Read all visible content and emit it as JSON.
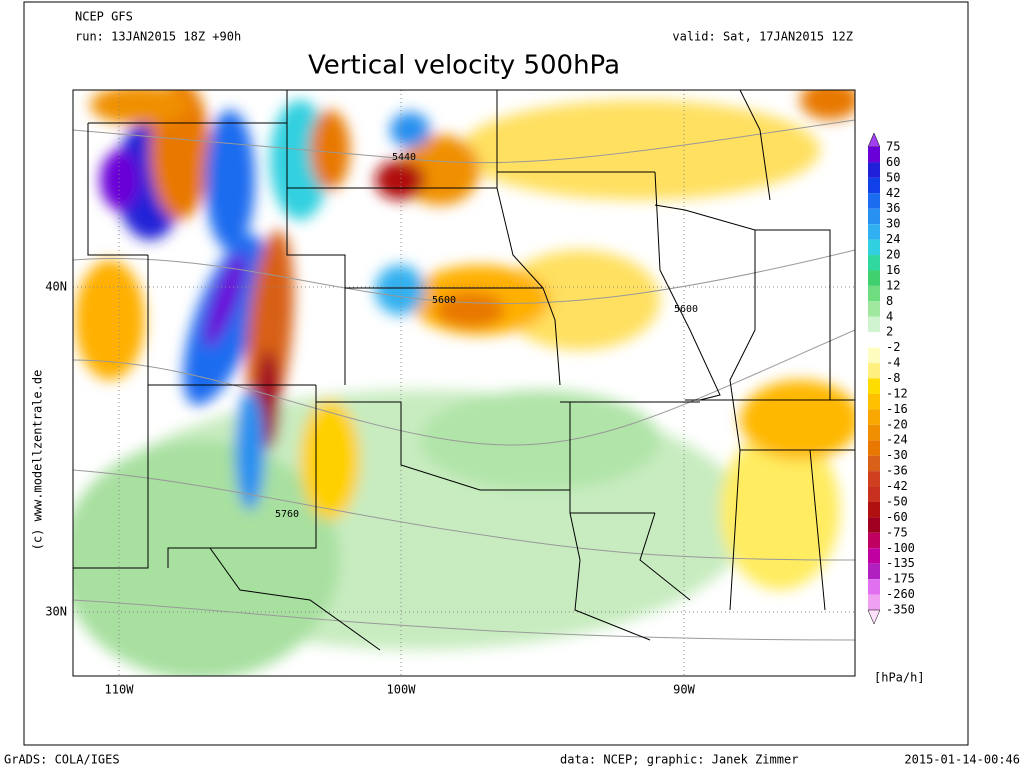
{
  "header": {
    "model": "NCEP GFS",
    "run": "run: 13JAN2015 18Z +90h",
    "valid": "valid: Sat, 17JAN2015 12Z",
    "title": "Vertical velocity 500hPa"
  },
  "side_credit": "(c) www.modellzentrale.de",
  "latitude_labels": [
    "40N",
    "30N"
  ],
  "longitude_labels": [
    "110W",
    "100W",
    "90W"
  ],
  "contour_labels": [
    "5440",
    "5600",
    "5600",
    "5760"
  ],
  "legend": {
    "units": "[hPa/h]",
    "levels": [
      75,
      60,
      50,
      42,
      36,
      30,
      24,
      20,
      16,
      12,
      8,
      4,
      2,
      -2,
      -4,
      -8,
      -12,
      -16,
      -20,
      -24,
      -30,
      -36,
      -42,
      -50,
      -60,
      -75,
      -100,
      -135,
      -175,
      -260,
      -350
    ],
    "colors": [
      "#a040f0",
      "#6a00d8",
      "#2020d8",
      "#1040e8",
      "#1c6cf0",
      "#2890f0",
      "#30b0f0",
      "#30d0e0",
      "#30d8a0",
      "#40d070",
      "#70dc80",
      "#a0e8a0",
      "#d0f4d0",
      "#ffffff",
      "#fffcc0",
      "#fff080",
      "#ffdc00",
      "#ffc000",
      "#f8a800",
      "#f09000",
      "#e87800",
      "#d86018",
      "#d04020",
      "#c83020",
      "#b01010",
      "#a00020",
      "#c00060",
      "#c000a0",
      "#b020c0",
      "#e070f0",
      "#f0a0f0",
      "#ffe0ff"
    ]
  },
  "footer": {
    "left": "GrADS: COLA/IGES",
    "center": "data: NCEP; graphic: Janek Zimmer",
    "right": "2015-01-14-00:46"
  }
}
